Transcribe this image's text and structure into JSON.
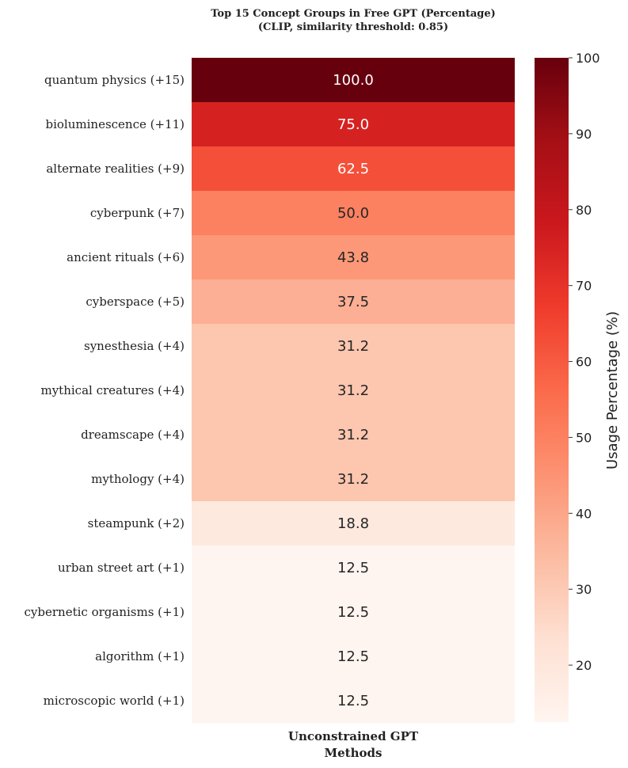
{
  "chart_data": {
    "type": "heatmap",
    "title": "Top 15 Concept Groups in Free GPT (Percentage)\n(CLIP, similarity threshold: 0.85)",
    "title_lines": [
      "Top 15 Concept Groups in Free GPT (Percentage)",
      "(CLIP, similarity threshold: 0.85)"
    ],
    "xlabel": "Methods",
    "x_categories": [
      "Unconstrained GPT"
    ],
    "y_categories": [
      "quantum physics (+15)",
      "bioluminescence (+11)",
      "alternate realities (+9)",
      "cyberpunk (+7)",
      "ancient rituals (+6)",
      "cyberspace (+5)",
      "synesthesia (+4)",
      "mythical creatures (+4)",
      "dreamscape (+4)",
      "mythology (+4)",
      "steampunk (+2)",
      "urban street art (+1)",
      "cybernetic organisms (+1)",
      "algorithm (+1)",
      "microscopic world (+1)"
    ],
    "values": [
      100.0,
      75.0,
      62.5,
      50.0,
      43.8,
      37.5,
      31.2,
      31.2,
      31.2,
      31.2,
      18.8,
      12.5,
      12.5,
      12.5,
      12.5
    ],
    "value_labels": [
      "100.0",
      "75.0",
      "62.5",
      "50.0",
      "43.8",
      "37.5",
      "31.2",
      "31.2",
      "31.2",
      "31.2",
      "18.8",
      "12.5",
      "12.5",
      "12.5",
      "12.5"
    ],
    "colorbar": {
      "label": "Usage Percentage (%)",
      "range": [
        12.5,
        100
      ],
      "ticks": [
        20,
        30,
        40,
        50,
        60,
        70,
        80,
        90,
        100
      ],
      "colormap": "Reds"
    }
  }
}
